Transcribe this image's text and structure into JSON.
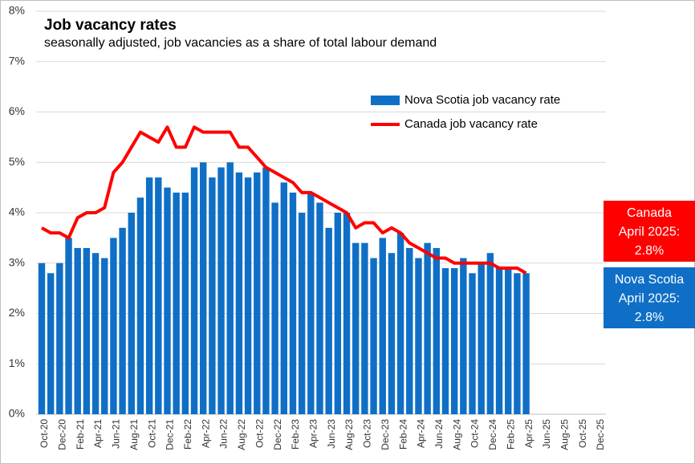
{
  "chart_data": {
    "type": "bar",
    "title": "Job vacancy rates",
    "subtitle": "seasonally adjusted, job vacancies as a share of total labour demand",
    "categories": [
      "Oct-20",
      null,
      "Dec-20",
      null,
      "Feb-21",
      null,
      "Apr-21",
      null,
      "Jun-21",
      null,
      "Aug-21",
      null,
      "Oct-21",
      null,
      "Dec-21",
      null,
      "Feb-22",
      null,
      "Apr-22",
      null,
      "Jun-22",
      null,
      "Aug-22",
      null,
      "Oct-22",
      null,
      "Dec-22",
      null,
      "Feb-23",
      null,
      "Apr-23",
      null,
      "Jun-23",
      null,
      "Aug-23",
      null,
      "Oct-23",
      null,
      "Dec-23",
      null,
      "Feb-24",
      null,
      "Apr-24",
      null,
      "Jun-24",
      null,
      "Aug-24",
      null,
      "Oct-24",
      null,
      "Dec-24",
      null,
      "Feb-25",
      null,
      "Apr-25",
      null,
      "Jun-25",
      null,
      "Aug-25",
      null,
      "Oct-25",
      null,
      "Dec-25"
    ],
    "series": [
      {
        "name": "Nova Scotia job vacancy rate",
        "type": "bar",
        "color": "#0f6fc6",
        "values": [
          3.0,
          2.8,
          3.0,
          3.5,
          3.3,
          3.3,
          3.2,
          3.1,
          3.5,
          3.7,
          4.0,
          4.3,
          4.7,
          4.7,
          4.5,
          4.4,
          4.4,
          4.9,
          5.0,
          4.7,
          4.9,
          5.0,
          4.8,
          4.7,
          4.8,
          4.9,
          4.2,
          4.6,
          4.4,
          4.0,
          4.4,
          4.2,
          3.7,
          4.0,
          4.0,
          3.4,
          3.4,
          3.1,
          3.5,
          3.2,
          3.6,
          3.3,
          3.1,
          3.4,
          3.3,
          2.9,
          2.9,
          3.1,
          2.8,
          3.0,
          3.2,
          2.9,
          2.9,
          2.8,
          2.8,
          null,
          null,
          null,
          null,
          null,
          null,
          null,
          null
        ]
      },
      {
        "name": "Canada job vacancy rate",
        "type": "line",
        "color": "#ff0000",
        "values": [
          3.7,
          3.6,
          3.6,
          3.5,
          3.9,
          4.0,
          4.0,
          4.1,
          4.8,
          5.0,
          5.3,
          5.6,
          5.5,
          5.4,
          5.7,
          5.3,
          5.3,
          5.7,
          5.6,
          5.6,
          5.6,
          5.6,
          5.3,
          5.3,
          5.1,
          4.9,
          4.8,
          4.7,
          4.6,
          4.4,
          4.4,
          4.3,
          4.2,
          4.1,
          4.0,
          3.7,
          3.8,
          3.8,
          3.6,
          3.7,
          3.6,
          3.4,
          3.3,
          3.2,
          3.1,
          3.1,
          3.0,
          3.0,
          3.0,
          3.0,
          3.0,
          2.9,
          2.9,
          2.9,
          2.8,
          null,
          null,
          null,
          null,
          null,
          null,
          null,
          null
        ]
      }
    ],
    "ylim": [
      0,
      8
    ],
    "yticks": [
      {
        "value": 0,
        "label": "0%"
      },
      {
        "value": 1,
        "label": "1%"
      },
      {
        "value": 2,
        "label": "2%"
      },
      {
        "value": 3,
        "label": "3%"
      },
      {
        "value": 4,
        "label": "4%"
      },
      {
        "value": 5,
        "label": "5%"
      },
      {
        "value": 6,
        "label": "6%"
      },
      {
        "value": 7,
        "label": "7%"
      },
      {
        "value": 8,
        "label": "8%"
      }
    ],
    "grid": true,
    "annotations": [
      {
        "lines": [
          "Canada",
          "April 2025:",
          "2.8%"
        ],
        "color": "#ff0000"
      },
      {
        "lines": [
          "Nova Scotia",
          "April 2025:",
          "2.8%"
        ],
        "color": "#0f6fc6"
      }
    ]
  }
}
